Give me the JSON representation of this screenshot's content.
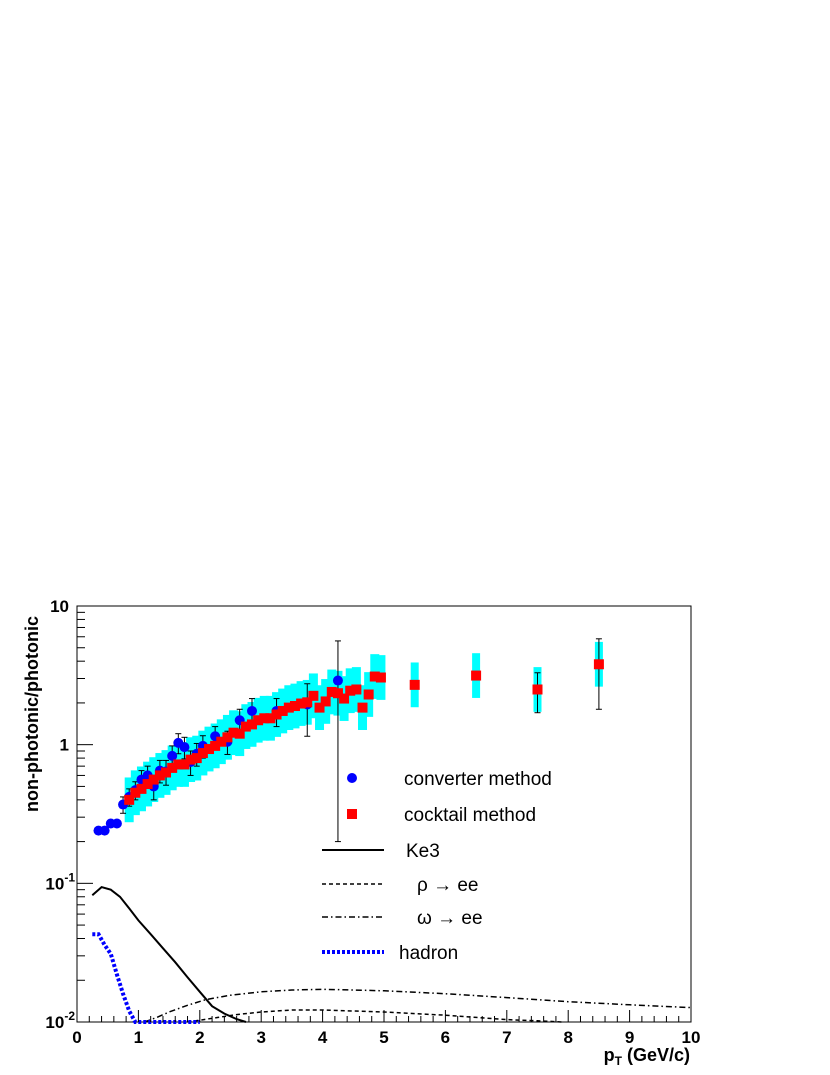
{
  "chart_data": {
    "type": "scatter",
    "xlabel": "p",
    "xlabel_sub": "T",
    "xlabel_unit": " (GeV/c)",
    "ylabel": "non-photonic/photonic",
    "xlim": [
      0,
      10
    ],
    "ylim": [
      0.01,
      10
    ],
    "yscale": "log",
    "x_ticks": [
      "0",
      "1",
      "2",
      "3",
      "4",
      "5",
      "6",
      "7",
      "8",
      "9",
      "10"
    ],
    "y_ticks": [
      {
        "value": 10,
        "base": "10",
        "exp": ""
      },
      {
        "value": 1,
        "base": "1",
        "exp": ""
      },
      {
        "value": 0.1,
        "base": "10",
        "exp": "-1"
      },
      {
        "value": 0.01,
        "base": "10",
        "exp": "-2"
      }
    ],
    "legend_position": "center",
    "legend": [
      {
        "label": "converter method",
        "marker": "circle",
        "color": "#0000ff"
      },
      {
        "label": "cocktail method",
        "marker": "square",
        "color": "#ff0000"
      },
      {
        "label": "Ke3",
        "line": "solid",
        "color": "#000000"
      },
      {
        "label": "ρ → ee",
        "line": "dashed",
        "color": "#000000"
      },
      {
        "label": "ω → ee",
        "line": "dashdot",
        "color": "#000000"
      },
      {
        "label": "hadron",
        "line": "dotted-thick",
        "color": "#0000ff"
      }
    ],
    "series": [
      {
        "name": "converter method",
        "marker": "circle",
        "color": "#0000ff",
        "points": [
          {
            "x": 0.35,
            "y": 0.24
          },
          {
            "x": 0.45,
            "y": 0.24
          },
          {
            "x": 0.55,
            "y": 0.27
          },
          {
            "x": 0.65,
            "y": 0.27
          },
          {
            "x": 0.75,
            "y": 0.37,
            "err": 0.05
          },
          {
            "x": 0.85,
            "y": 0.42,
            "err": 0.06
          },
          {
            "x": 0.95,
            "y": 0.47,
            "err": 0.07
          },
          {
            "x": 1.05,
            "y": 0.56,
            "err": 0.09
          },
          {
            "x": 1.15,
            "y": 0.6,
            "err": 0.1
          },
          {
            "x": 1.25,
            "y": 0.5,
            "err": 0.1
          },
          {
            "x": 1.35,
            "y": 0.65,
            "err": 0.12
          },
          {
            "x": 1.45,
            "y": 0.64,
            "err": 0.13
          },
          {
            "x": 1.55,
            "y": 0.83,
            "err": 0.15
          },
          {
            "x": 1.65,
            "y": 1.03,
            "err": 0.17
          },
          {
            "x": 1.75,
            "y": 0.96,
            "err": 0.17
          },
          {
            "x": 1.85,
            "y": 0.75,
            "err": 0.15
          },
          {
            "x": 1.95,
            "y": 0.86,
            "err": 0.16
          },
          {
            "x": 2.05,
            "y": 0.98,
            "err": 0.18
          },
          {
            "x": 2.25,
            "y": 1.15,
            "err": 0.2
          },
          {
            "x": 2.45,
            "y": 1.05,
            "err": 0.2
          },
          {
            "x": 2.65,
            "y": 1.5,
            "err": 0.3
          },
          {
            "x": 2.85,
            "y": 1.75,
            "err": 0.4
          },
          {
            "x": 3.25,
            "y": 1.75,
            "err": 0.4
          },
          {
            "x": 3.75,
            "y": 1.95,
            "err": 0.8
          },
          {
            "x": 4.25,
            "y": 2.9,
            "err": 2.7
          }
        ]
      },
      {
        "name": "cocktail method",
        "marker": "square",
        "color": "#ff0000",
        "band_color": "#00ffff",
        "points": [
          {
            "x": 0.85,
            "y": 0.4
          },
          {
            "x": 0.95,
            "y": 0.45
          },
          {
            "x": 1.05,
            "y": 0.48
          },
          {
            "x": 1.15,
            "y": 0.52
          },
          {
            "x": 1.25,
            "y": 0.56
          },
          {
            "x": 1.35,
            "y": 0.6
          },
          {
            "x": 1.45,
            "y": 0.63
          },
          {
            "x": 1.55,
            "y": 0.68
          },
          {
            "x": 1.65,
            "y": 0.72
          },
          {
            "x": 1.75,
            "y": 0.72
          },
          {
            "x": 1.85,
            "y": 0.78
          },
          {
            "x": 1.95,
            "y": 0.8
          },
          {
            "x": 2.05,
            "y": 0.87
          },
          {
            "x": 2.15,
            "y": 0.93
          },
          {
            "x": 2.25,
            "y": 0.98
          },
          {
            "x": 2.35,
            "y": 1.05
          },
          {
            "x": 2.45,
            "y": 1.13
          },
          {
            "x": 2.55,
            "y": 1.22
          },
          {
            "x": 2.65,
            "y": 1.2
          },
          {
            "x": 2.75,
            "y": 1.35
          },
          {
            "x": 2.85,
            "y": 1.4
          },
          {
            "x": 2.95,
            "y": 1.5
          },
          {
            "x": 3.05,
            "y": 1.55
          },
          {
            "x": 3.15,
            "y": 1.55
          },
          {
            "x": 3.25,
            "y": 1.65
          },
          {
            "x": 3.35,
            "y": 1.75
          },
          {
            "x": 3.45,
            "y": 1.85
          },
          {
            "x": 3.55,
            "y": 1.9
          },
          {
            "x": 3.65,
            "y": 1.98
          },
          {
            "x": 3.75,
            "y": 2.02
          },
          {
            "x": 3.85,
            "y": 2.25
          },
          {
            "x": 3.95,
            "y": 1.85
          },
          {
            "x": 4.05,
            "y": 2.05
          },
          {
            "x": 4.15,
            "y": 2.4
          },
          {
            "x": 4.25,
            "y": 2.35
          },
          {
            "x": 4.35,
            "y": 2.15
          },
          {
            "x": 4.45,
            "y": 2.45
          },
          {
            "x": 4.55,
            "y": 2.5
          },
          {
            "x": 4.65,
            "y": 1.85
          },
          {
            "x": 4.75,
            "y": 2.3
          },
          {
            "x": 4.85,
            "y": 3.1
          },
          {
            "x": 4.95,
            "y": 3.05
          },
          {
            "x": 5.5,
            "y": 2.7
          },
          {
            "x": 6.5,
            "y": 3.15
          },
          {
            "x": 7.5,
            "y": 2.5,
            "err": 0.8
          },
          {
            "x": 8.5,
            "y": 3.8,
            "err": 2.0
          }
        ]
      },
      {
        "name": "Ke3",
        "line": "solid",
        "color": "#000000",
        "x": [
          0.25,
          0.4,
          0.55,
          0.7,
          0.85,
          1.0,
          1.2,
          1.4,
          1.6,
          1.8,
          2.0,
          2.2,
          2.4,
          2.6,
          2.75
        ],
        "y": [
          0.082,
          0.094,
          0.09,
          0.08,
          0.066,
          0.054,
          0.043,
          0.034,
          0.027,
          0.021,
          0.0165,
          0.013,
          0.0115,
          0.0105,
          0.01
        ]
      },
      {
        "name": "ρ → ee",
        "line": "dashed",
        "color": "#000000",
        "x": [
          1.8,
          2.0,
          2.3,
          2.6,
          3.0,
          3.5,
          4.0,
          4.5,
          5.0,
          5.5,
          6.0,
          6.5,
          7.0,
          7.5,
          7.9
        ],
        "y": [
          0.01,
          0.0103,
          0.0108,
          0.0113,
          0.0118,
          0.0122,
          0.0122,
          0.012,
          0.0118,
          0.0115,
          0.0112,
          0.0108,
          0.0104,
          0.0102,
          0.01
        ]
      },
      {
        "name": "ω → ee",
        "line": "dashdot",
        "color": "#000000",
        "x": [
          1.1,
          1.3,
          1.5,
          1.8,
          2.1,
          2.5,
          3.0,
          3.5,
          4.0,
          4.5,
          5.0,
          6.0,
          7.0,
          8.0,
          9.0,
          10.0
        ],
        "y": [
          0.01,
          0.0108,
          0.0118,
          0.0132,
          0.0145,
          0.0156,
          0.0165,
          0.017,
          0.0172,
          0.017,
          0.0168,
          0.016,
          0.015,
          0.014,
          0.0133,
          0.0127
        ]
      },
      {
        "name": "hadron",
        "line": "dotted-thick",
        "color": "#0000ff",
        "x": [
          0.25,
          0.35,
          0.45,
          0.55,
          0.65,
          0.75,
          0.85,
          0.95,
          1.1,
          1.3,
          1.6,
          2.0
        ],
        "y": [
          0.043,
          0.043,
          0.036,
          0.031,
          0.022,
          0.016,
          0.012,
          0.01,
          0.01,
          0.01,
          0.01,
          0.01
        ]
      }
    ]
  }
}
